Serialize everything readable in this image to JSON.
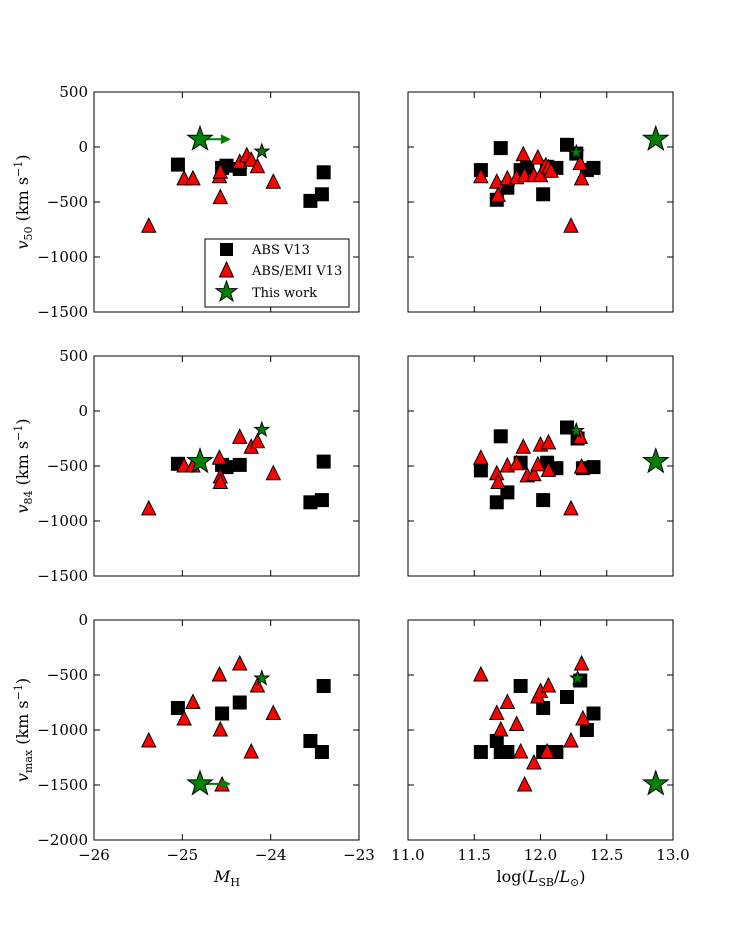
{
  "figure": {
    "legend": {
      "placement": "lower-right of top-left panel",
      "entries": [
        {
          "label": "ABS V13",
          "marker": "square",
          "color": "#000000"
        },
        {
          "label": "ABS/EMI V13",
          "marker": "triangle",
          "color": "#ff0000"
        },
        {
          "label": "This work",
          "marker": "star",
          "color": "#008000"
        }
      ]
    },
    "colors": {
      "abs": "#000000",
      "absemi": "#ff0000",
      "thiswork": "#008000",
      "marker_edge": "#000000"
    }
  },
  "chart_data": [
    {
      "id": "p1",
      "type": "scatter",
      "xlabel": "M_H",
      "ylabel": "v_50 (km s^-1)",
      "xlim": [
        -26,
        -23
      ],
      "ylim": [
        -1500,
        500
      ],
      "xticks": [
        -26,
        -25,
        -24,
        -23
      ],
      "xtick_labels": [],
      "yticks": [
        -1500,
        -1000,
        -500,
        0,
        500
      ],
      "ytick_labels": [
        "−1500",
        "−1000",
        "−500",
        "0",
        "500"
      ],
      "series": [
        {
          "name": "ABS V13",
          "marker": "square",
          "points": [
            [
              -25.05,
              -160
            ],
            [
              -24.55,
              -190
            ],
            [
              -24.5,
              -170
            ],
            [
              -24.35,
              -200
            ],
            [
              -23.55,
              -490
            ],
            [
              -23.42,
              -430
            ],
            [
              -23.4,
              -230
            ]
          ]
        },
        {
          "name": "ABS/EMI V13",
          "marker": "triangle",
          "points": [
            [
              -25.38,
              -720
            ],
            [
              -24.98,
              -290
            ],
            [
              -24.88,
              -290
            ],
            [
              -24.58,
              -270
            ],
            [
              -24.57,
              -230
            ],
            [
              -24.57,
              -460
            ],
            [
              -24.35,
              -140
            ],
            [
              -24.27,
              -80
            ],
            [
              -24.22,
              -120
            ],
            [
              -24.15,
              -180
            ],
            [
              -23.97,
              -320
            ]
          ]
        },
        {
          "name": "This work",
          "marker": "star",
          "points": [
            [
              -24.8,
              70
            ],
            [
              -24.1,
              -40
            ]
          ],
          "sizes": [
            "large",
            "small"
          ],
          "arrows": [
            {
              "from": -24.8,
              "to": -24.45,
              "y": 70
            }
          ]
        }
      ]
    },
    {
      "id": "p2",
      "type": "scatter",
      "xlabel": "log(L_SB/L_sun)",
      "ylabel": "",
      "xlim": [
        11.0,
        13.0
      ],
      "ylim": [
        -1500,
        500
      ],
      "xticks": [
        11.0,
        11.5,
        12.0,
        12.5,
        13.0
      ],
      "xtick_labels": [],
      "yticks": [
        -1500,
        -1000,
        -500,
        0,
        500
      ],
      "ytick_labels": [],
      "series": [
        {
          "name": "ABS V13",
          "marker": "square",
          "points": [
            [
              11.55,
              -210
            ],
            [
              11.67,
              -480
            ],
            [
              11.7,
              -10
            ],
            [
              11.75,
              -370
            ],
            [
              11.85,
              -210
            ],
            [
              11.9,
              -190
            ],
            [
              12.02,
              -430
            ],
            [
              12.05,
              -180
            ],
            [
              12.12,
              -190
            ],
            [
              12.2,
              20
            ],
            [
              12.27,
              -60
            ],
            [
              12.35,
              -210
            ],
            [
              12.4,
              -190
            ]
          ]
        },
        {
          "name": "ABS/EMI V13",
          "marker": "triangle",
          "points": [
            [
              11.55,
              -270
            ],
            [
              11.67,
              -320
            ],
            [
              11.68,
              -440
            ],
            [
              11.75,
              -290
            ],
            [
              11.82,
              -280
            ],
            [
              11.87,
              -70
            ],
            [
              11.88,
              -260
            ],
            [
              11.95,
              -260
            ],
            [
              11.98,
              -100
            ],
            [
              12.0,
              -260
            ],
            [
              12.04,
              -170
            ],
            [
              12.06,
              -190
            ],
            [
              12.08,
              -220
            ],
            [
              12.23,
              -720
            ],
            [
              12.3,
              -150
            ],
            [
              12.31,
              -290
            ]
          ]
        },
        {
          "name": "This work",
          "marker": "star",
          "points": [
            [
              12.87,
              70
            ],
            [
              12.27,
              -50
            ]
          ],
          "sizes": [
            "large",
            "small"
          ]
        }
      ]
    },
    {
      "id": "p3",
      "type": "scatter",
      "xlabel": "M_H",
      "ylabel": "v_84 (km s^-1)",
      "xlim": [
        -26,
        -23
      ],
      "ylim": [
        -1500,
        500
      ],
      "xticks": [
        -26,
        -25,
        -24,
        -23
      ],
      "xtick_labels": [],
      "yticks": [
        -1500,
        -1000,
        -500,
        0,
        500
      ],
      "ytick_labels": [
        "−1500",
        "−1000",
        "−500",
        "0",
        "500"
      ],
      "series": [
        {
          "name": "ABS V13",
          "marker": "square",
          "points": [
            [
              -25.05,
              -480
            ],
            [
              -24.55,
              -490
            ],
            [
              -24.5,
              -510
            ],
            [
              -24.35,
              -490
            ],
            [
              -23.55,
              -830
            ],
            [
              -23.42,
              -810
            ],
            [
              -23.4,
              -460
            ]
          ]
        },
        {
          "name": "ABS/EMI V13",
          "marker": "triangle",
          "points": [
            [
              -25.38,
              -890
            ],
            [
              -24.98,
              -500
            ],
            [
              -24.88,
              -500
            ],
            [
              -24.58,
              -430
            ],
            [
              -24.57,
              -600
            ],
            [
              -24.57,
              -650
            ],
            [
              -24.35,
              -240
            ],
            [
              -24.22,
              -330
            ],
            [
              -24.15,
              -280
            ],
            [
              -23.97,
              -570
            ]
          ]
        },
        {
          "name": "This work",
          "marker": "star",
          "points": [
            [
              -24.8,
              -460
            ],
            [
              -24.1,
              -170
            ]
          ],
          "sizes": [
            "large",
            "small"
          ]
        }
      ]
    },
    {
      "id": "p4",
      "type": "scatter",
      "xlabel": "log(L_SB/L_sun)",
      "ylabel": "",
      "xlim": [
        11.0,
        13.0
      ],
      "ylim": [
        -1500,
        500
      ],
      "xticks": [
        11.0,
        11.5,
        12.0,
        12.5,
        13.0
      ],
      "xtick_labels": [],
      "yticks": [
        -1500,
        -1000,
        -500,
        0,
        500
      ],
      "ytick_labels": [],
      "series": [
        {
          "name": "ABS V13",
          "marker": "square",
          "points": [
            [
              11.55,
              -540
            ],
            [
              11.67,
              -830
            ],
            [
              11.7,
              -230
            ],
            [
              11.75,
              -740
            ],
            [
              11.85,
              -470
            ],
            [
              12.02,
              -810
            ],
            [
              12.05,
              -470
            ],
            [
              12.12,
              -520
            ],
            [
              12.2,
              -150
            ],
            [
              12.28,
              -250
            ],
            [
              12.32,
              -520
            ],
            [
              12.4,
              -510
            ]
          ]
        },
        {
          "name": "ABS/EMI V13",
          "marker": "triangle",
          "points": [
            [
              11.55,
              -430
            ],
            [
              11.67,
              -570
            ],
            [
              11.68,
              -650
            ],
            [
              11.75,
              -500
            ],
            [
              11.82,
              -480
            ],
            [
              11.87,
              -330
            ],
            [
              11.9,
              -590
            ],
            [
              11.95,
              -580
            ],
            [
              11.98,
              -490
            ],
            [
              12.0,
              -310
            ],
            [
              12.06,
              -290
            ],
            [
              12.06,
              -540
            ],
            [
              12.23,
              -890
            ],
            [
              12.3,
              -240
            ],
            [
              12.31,
              -510
            ]
          ]
        },
        {
          "name": "This work",
          "marker": "star",
          "points": [
            [
              12.87,
              -460
            ],
            [
              12.27,
              -180
            ]
          ],
          "sizes": [
            "large",
            "small"
          ]
        }
      ]
    },
    {
      "id": "p5",
      "type": "scatter",
      "xlabel": "M_H",
      "ylabel": "v_max (km s^-1)",
      "xlim": [
        -26,
        -23
      ],
      "ylim": [
        -2000,
        0
      ],
      "xticks": [
        -26,
        -25,
        -24,
        -23
      ],
      "xtick_labels": [
        "−26",
        "−25",
        "−24",
        "−23"
      ],
      "yticks": [
        -2000,
        -1500,
        -1000,
        -500,
        0
      ],
      "ytick_labels": [
        "−2000",
        "−1500",
        "−1000",
        "−500",
        "0"
      ],
      "series": [
        {
          "name": "ABS V13",
          "marker": "square",
          "points": [
            [
              -25.05,
              -800
            ],
            [
              -24.55,
              -850
            ],
            [
              -24.35,
              -750
            ],
            [
              -23.55,
              -1100
            ],
            [
              -23.42,
              -1200
            ],
            [
              -23.4,
              -600
            ]
          ]
        },
        {
          "name": "ABS/EMI V13",
          "marker": "triangle",
          "points": [
            [
              -25.38,
              -1100
            ],
            [
              -24.98,
              -900
            ],
            [
              -24.88,
              -750
            ],
            [
              -24.58,
              -500
            ],
            [
              -24.57,
              -1000
            ],
            [
              -24.55,
              -1500
            ],
            [
              -24.35,
              -400
            ],
            [
              -24.22,
              -1200
            ],
            [
              -24.15,
              -600
            ],
            [
              -23.97,
              -850
            ]
          ]
        },
        {
          "name": "This work",
          "marker": "star",
          "points": [
            [
              -24.8,
              -1490
            ],
            [
              -24.1,
              -530
            ]
          ],
          "sizes": [
            "large",
            "small"
          ],
          "arrows": [
            {
              "from": -24.8,
              "to": -24.45,
              "y": -1490
            }
          ]
        }
      ]
    },
    {
      "id": "p6",
      "type": "scatter",
      "xlabel": "log(L_SB/L_sun)",
      "ylabel": "",
      "xlim": [
        11.0,
        13.0
      ],
      "ylim": [
        -2000,
        0
      ],
      "xticks": [
        11.0,
        11.5,
        12.0,
        12.5,
        13.0
      ],
      "xtick_labels": [
        "11.0",
        "11.5",
        "12.0",
        "12.5",
        "13.0"
      ],
      "yticks": [
        -2000,
        -1500,
        -1000,
        -500,
        0
      ],
      "ytick_labels": [],
      "series": [
        {
          "name": "ABS V13",
          "marker": "square",
          "points": [
            [
              11.55,
              -1200
            ],
            [
              11.67,
              -1100
            ],
            [
              11.7,
              -1200
            ],
            [
              11.75,
              -1200
            ],
            [
              11.85,
              -600
            ],
            [
              12.02,
              -800
            ],
            [
              12.02,
              -1200
            ],
            [
              12.12,
              -1200
            ],
            [
              12.2,
              -700
            ],
            [
              12.3,
              -550
            ],
            [
              12.35,
              -1000
            ],
            [
              12.4,
              -850
            ]
          ]
        },
        {
          "name": "ABS/EMI V13",
          "marker": "triangle",
          "points": [
            [
              11.55,
              -500
            ],
            [
              11.67,
              -850
            ],
            [
              11.7,
              -1000
            ],
            [
              11.75,
              -750
            ],
            [
              11.82,
              -950
            ],
            [
              11.85,
              -1200
            ],
            [
              11.88,
              -1500
            ],
            [
              11.95,
              -1300
            ],
            [
              11.98,
              -700
            ],
            [
              12.0,
              -650
            ],
            [
              12.05,
              -1200
            ],
            [
              12.06,
              -600
            ],
            [
              12.23,
              -1100
            ],
            [
              12.31,
              -400
            ],
            [
              12.32,
              -900
            ]
          ]
        },
        {
          "name": "This work",
          "marker": "star",
          "points": [
            [
              12.87,
              -1490
            ],
            [
              12.28,
              -530
            ]
          ],
          "sizes": [
            "large",
            "small"
          ]
        }
      ]
    }
  ]
}
